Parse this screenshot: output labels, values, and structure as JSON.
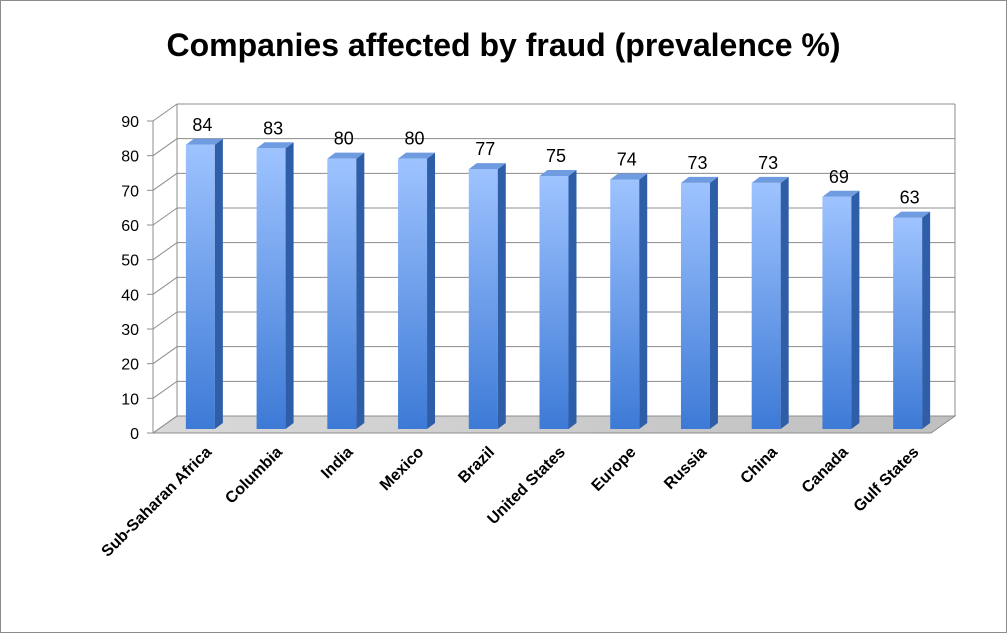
{
  "chart_data": {
    "type": "bar",
    "title": "Companies affected by fraud (prevalence %)",
    "categories": [
      "Sub-Saharan Africa",
      "Columbia",
      "India",
      "Mexico",
      "Brazil",
      "United States",
      "Europe",
      "Russia",
      "China",
      "Canada",
      "Gulf States"
    ],
    "values": [
      84,
      83,
      80,
      80,
      77,
      75,
      74,
      73,
      73,
      69,
      63
    ],
    "xlabel": "",
    "ylabel": "",
    "ylim": [
      0,
      90
    ],
    "yticks": [
      0,
      10,
      20,
      30,
      40,
      50,
      60,
      70,
      80,
      90
    ],
    "grid": true,
    "legend": "none",
    "bar_color_top": "#9ec3ff",
    "bar_color_bottom": "#3d7ad6",
    "bar_side_color": "#2f5ea8",
    "bar_top_color": "#6f9be0"
  }
}
